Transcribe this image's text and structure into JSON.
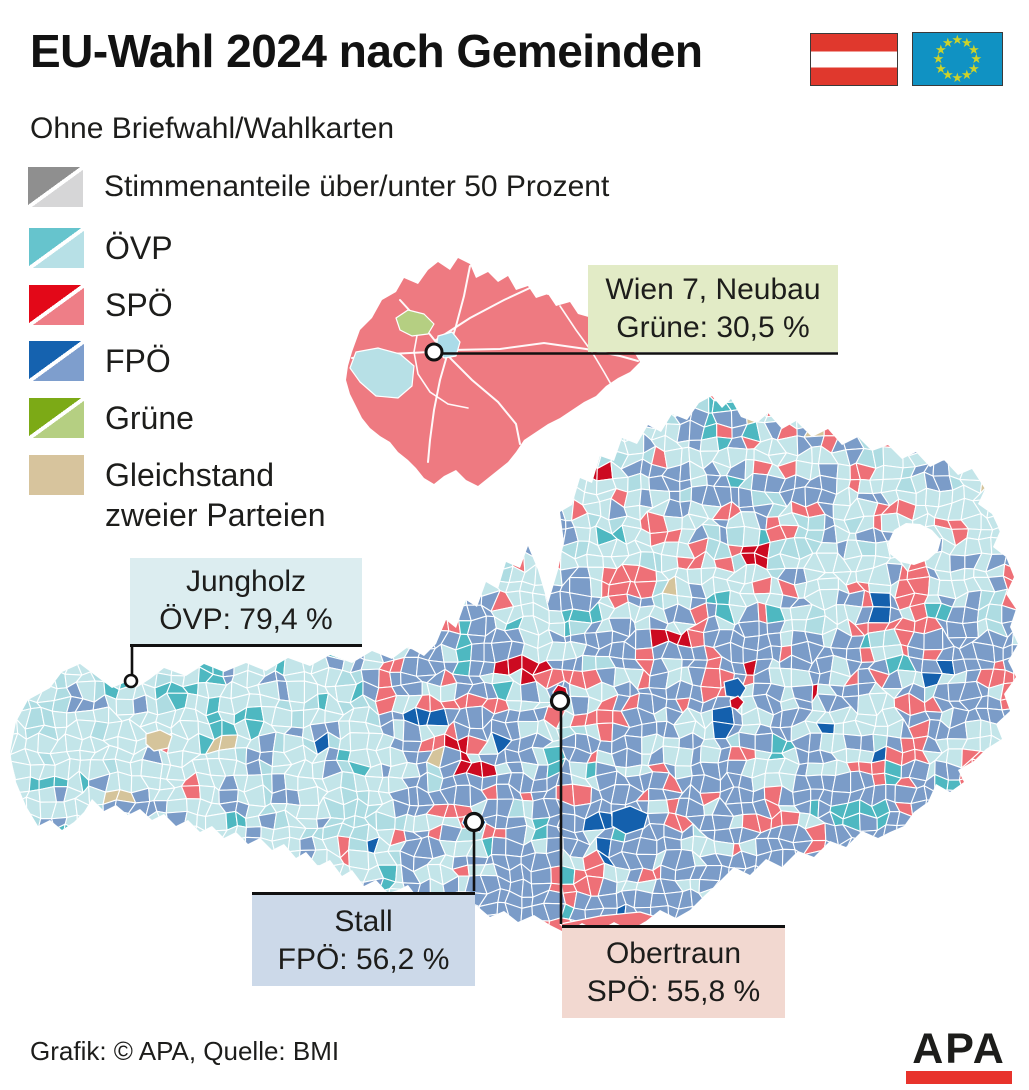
{
  "header": {
    "title": "EU-Wahl 2024 nach Gemeinden",
    "subtitle": "Ohne Briefwahl/Wahlkarten"
  },
  "legend": {
    "split": {
      "label": "Stimmenanteile über/unter 50 Prozent",
      "over": "#8f8f8f",
      "under": "#d6d6d7"
    },
    "parties": [
      {
        "label": "ÖVP",
        "over": "#66c4cd",
        "under": "#b7e0e6"
      },
      {
        "label": "SPÖ",
        "over": "#e30818",
        "under": "#ee7e87"
      },
      {
        "label": "FPÖ",
        "over": "#1562af",
        "under": "#7e9ecd"
      },
      {
        "label": "Grüne",
        "over": "#7caa16",
        "under": "#b5cf82"
      },
      {
        "label": "Gleichstand zweier Parteien",
        "over": "#d7c49d",
        "under": "#d7c49d"
      }
    ]
  },
  "callouts": {
    "wien": {
      "line1": "Wien 7, Neubau",
      "line2": "Grüne: 30,5 %",
      "bg": "#e2ebc6"
    },
    "jungholz": {
      "line1": "Jungholz",
      "line2": "ÖVP: 79,4 %",
      "bg": "#dcedf0"
    },
    "stall": {
      "line1": "Stall",
      "line2": "FPÖ: 56,2 %",
      "bg": "#ccd9e9"
    },
    "obertraun": {
      "line1": "Obertraun",
      "line2": "SPÖ: 55,8 %",
      "bg": "#f2d8d0"
    }
  },
  "flags": {
    "austria_red": "#e0382d",
    "eu_blue": "#1092c3",
    "eu_star": "#ccd22b"
  },
  "footer": {
    "credit": "Grafik: © APA, Quelle: BMI",
    "logo_text": "APA",
    "logo_color": "#1d1d1b",
    "logo_bar": "#e8332c"
  },
  "map_palette": {
    "ovp_under": "#c3e5e9",
    "ovp_under2": "#aedce2",
    "ovp_over": "#4eb8c1",
    "spo_under": "#ee7077",
    "spo_over": "#cc0a21",
    "fpo_under": "#7b9cc8",
    "fpo_over": "#1460ad",
    "gruene_under": "#b5cf85",
    "tie": "#d5c49b",
    "border": "#ffffff"
  }
}
